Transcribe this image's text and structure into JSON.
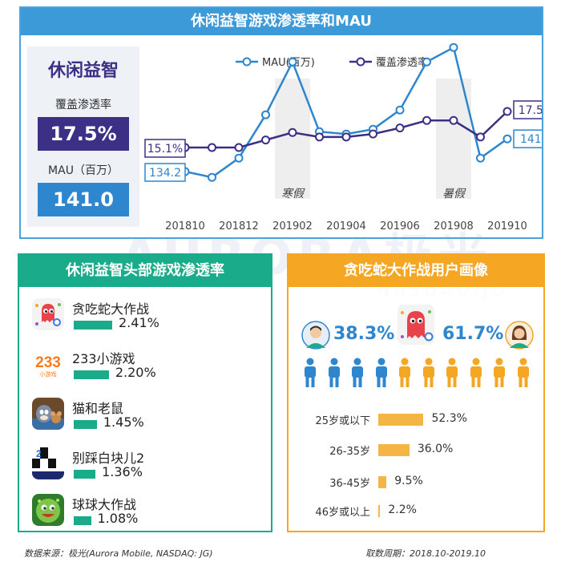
{
  "top": {
    "title": "休闲益智游戏渗透率和MAU",
    "stat": {
      "category": "休闲益智",
      "coverage_label": "覆盖渗透率",
      "coverage_value": "17.5%",
      "mau_label": "MAU（百万）",
      "mau_value": "141.0"
    }
  },
  "chart_data": {
    "type": "line",
    "categories": [
      "201810",
      "201811",
      "201812",
      "201901",
      "201902",
      "201903",
      "201904",
      "201905",
      "201906",
      "201907",
      "201908",
      "201909",
      "201910"
    ],
    "x_tick_labels": [
      "201810",
      "201812",
      "201902",
      "201904",
      "201906",
      "201908",
      "201910"
    ],
    "series": [
      {
        "name": "MAU(百万)",
        "color": "#2e86cf",
        "values": [
          134.2,
          133.0,
          137.0,
          146.0,
          157.0,
          142.5,
          142.0,
          143.0,
          147.0,
          157.0,
          160.0,
          137.0,
          141.0
        ]
      },
      {
        "name": "覆盖渗透率",
        "color": "#3b2f86",
        "values": [
          15.1,
          15.1,
          15.1,
          15.6,
          16.1,
          15.8,
          15.8,
          16.0,
          16.4,
          16.9,
          16.9,
          15.8,
          17.5
        ]
      }
    ],
    "start_labels": [
      "134.2",
      "15.1%"
    ],
    "end_labels": [
      "141.0",
      "17.5%"
    ],
    "shaded_periods": [
      {
        "label": "寒假",
        "at": "201902"
      },
      {
        "label": "暑假",
        "at": "201908"
      }
    ]
  },
  "watermark": {
    "main": "AURORA极光",
    "sub": "NASDAQ:JG"
  },
  "left_panel": {
    "title": "休闲益智头部游戏渗透率",
    "games": [
      {
        "name": "贪吃蛇大作战",
        "value": "2.41%",
        "pct": 2.41,
        "icon": "snake-icon"
      },
      {
        "name": "233小游戏",
        "value": "2.20%",
        "pct": 2.2,
        "icon": "233-icon",
        "icon_text": "233",
        "icon_subtext": "小游戏"
      },
      {
        "name": "猫和老鼠",
        "value": "1.45%",
        "pct": 1.45,
        "icon": "tom-jerry-icon"
      },
      {
        "name": "别踩白块儿2",
        "value": "1.36%",
        "pct": 1.36,
        "icon": "piano-tiles-icon",
        "icon_text": "2"
      },
      {
        "name": "球球大作战",
        "value": "1.08%",
        "pct": 1.08,
        "icon": "ball-battle-icon"
      }
    ]
  },
  "right_panel": {
    "title": "贪吃蛇大作战用户画像",
    "male_pct": "38.3%",
    "female_pct": "61.7%",
    "male_share": 38.3,
    "female_share": 61.7,
    "age_groups": [
      {
        "label": "25岁或以下",
        "value": "52.3%",
        "pct": 52.3
      },
      {
        "label": "26-35岁",
        "value": "36.0%",
        "pct": 36.0
      },
      {
        "label": "36-45岁",
        "value": "9.5%",
        "pct": 9.5
      },
      {
        "label": "46岁或以上",
        "value": "2.2%",
        "pct": 2.2
      }
    ]
  },
  "footer": {
    "source": "数据来源：极光(Aurora Mobile, NASDAQ: JG)",
    "period": "取数周期：2018.10-2019.10"
  },
  "colors": {
    "blue": "#2e86cf",
    "purple": "#3b2f86",
    "green": "#1aab8a",
    "orange": "#f5a623"
  }
}
